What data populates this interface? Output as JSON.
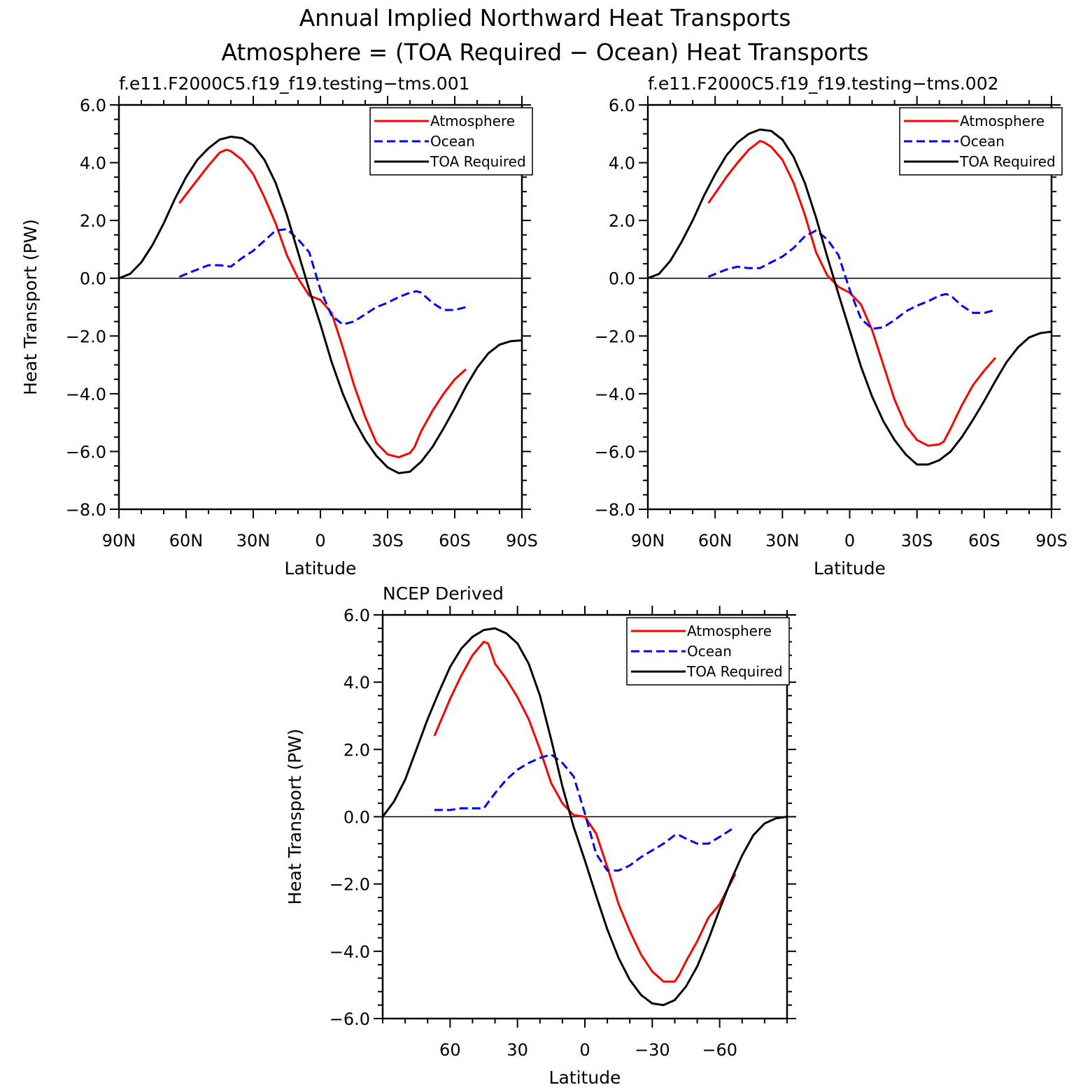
{
  "figure": {
    "title_lines": [
      "Annual Implied Northward Heat Transports",
      "Atmosphere = (TOA Required − Ocean) Heat Transports"
    ]
  },
  "colors": {
    "atmosphere": "#ff0000",
    "ocean": "#0000ff",
    "toa": "#000000"
  },
  "chart_data": [
    {
      "type": "line",
      "title": "f.e11.F2000C5.f19_f19.testing−tms.001",
      "xlabel": "Latitude",
      "ylabel": "Heat Transport (PW)",
      "xlim": [
        90,
        -90
      ],
      "ylim": [
        -8,
        6
      ],
      "x_ticks": [
        90,
        60,
        30,
        0,
        -30,
        -60,
        -90
      ],
      "x_tick_labels": [
        "90N",
        "60N",
        "30N",
        "0",
        "30S",
        "60S",
        "90S"
      ],
      "y_ticks": [
        6,
        4,
        2,
        0,
        -2,
        -4,
        -6,
        -8
      ],
      "y_tick_labels": [
        "6.0",
        "4.0",
        "2.0",
        "0.0",
        "−2.0",
        "−4.0",
        "−6.0",
        "−8.0"
      ],
      "legend": {
        "position": "top-right",
        "entries": [
          "Atmosphere",
          "Ocean",
          "TOA Required"
        ]
      },
      "series": [
        {
          "name": "Atmosphere",
          "style": "solid",
          "color": "#ff0000",
          "x": [
            63,
            55,
            50,
            45,
            42,
            40,
            35,
            30,
            25,
            20,
            15,
            10,
            5,
            0,
            -5,
            -10,
            -15,
            -20,
            -25,
            -30,
            -35,
            -40,
            -42,
            -45,
            -50,
            -55,
            -60,
            -65
          ],
          "y": [
            2.6,
            3.4,
            3.9,
            4.35,
            4.45,
            4.4,
            4.1,
            3.6,
            2.8,
            1.9,
            0.8,
            0.0,
            -0.6,
            -0.75,
            -1.2,
            -2.4,
            -3.7,
            -4.8,
            -5.7,
            -6.1,
            -6.2,
            -6.05,
            -5.85,
            -5.3,
            -4.6,
            -4.0,
            -3.5,
            -3.15
          ]
        },
        {
          "name": "Ocean",
          "style": "dashed",
          "color": "#0000ff",
          "x": [
            63,
            55,
            50,
            45,
            40,
            35,
            30,
            25,
            20,
            15,
            10,
            5,
            0,
            -5,
            -10,
            -15,
            -20,
            -25,
            -30,
            -35,
            -40,
            -43,
            -45,
            -50,
            -55,
            -60,
            -65
          ],
          "y": [
            0.05,
            0.3,
            0.45,
            0.45,
            0.4,
            0.7,
            0.95,
            1.3,
            1.65,
            1.7,
            1.35,
            0.9,
            -0.4,
            -1.3,
            -1.6,
            -1.5,
            -1.25,
            -1.0,
            -0.85,
            -0.65,
            -0.5,
            -0.45,
            -0.5,
            -0.85,
            -1.1,
            -1.1,
            -1.0
          ]
        },
        {
          "name": "TOA Required",
          "style": "solid",
          "color": "#000000",
          "x": [
            90,
            85,
            80,
            75,
            70,
            65,
            60,
            55,
            50,
            45,
            40,
            35,
            30,
            25,
            20,
            15,
            10,
            5,
            0,
            -5,
            -10,
            -15,
            -20,
            -25,
            -30,
            -35,
            -40,
            -45,
            -50,
            -55,
            -60,
            -65,
            -70,
            -75,
            -80,
            -85,
            -90
          ],
          "y": [
            0.0,
            0.15,
            0.55,
            1.15,
            1.9,
            2.75,
            3.5,
            4.1,
            4.5,
            4.8,
            4.9,
            4.85,
            4.6,
            4.1,
            3.3,
            2.2,
            0.9,
            -0.4,
            -1.6,
            -2.9,
            -4.0,
            -4.9,
            -5.6,
            -6.15,
            -6.55,
            -6.75,
            -6.7,
            -6.35,
            -5.85,
            -5.2,
            -4.5,
            -3.75,
            -3.1,
            -2.6,
            -2.3,
            -2.18,
            -2.15
          ]
        }
      ]
    },
    {
      "type": "line",
      "title": "f.e11.F2000C5.f19_f19.testing−tms.002",
      "xlabel": "Latitude",
      "ylabel": "",
      "xlim": [
        90,
        -90
      ],
      "ylim": [
        -8,
        6
      ],
      "x_ticks": [
        90,
        60,
        30,
        0,
        -30,
        -60,
        -90
      ],
      "x_tick_labels": [
        "90N",
        "60N",
        "30N",
        "0",
        "30S",
        "60S",
        "90S"
      ],
      "y_ticks": [
        6,
        4,
        2,
        0,
        -2,
        -4,
        -6,
        -8
      ],
      "y_tick_labels": [
        "6.0",
        "4.0",
        "2.0",
        "0.0",
        "−2.0",
        "−4.0",
        "−6.0",
        "−8.0"
      ],
      "legend": {
        "position": "top-right",
        "entries": [
          "Atmosphere",
          "Ocean",
          "TOA Required"
        ]
      },
      "series": [
        {
          "name": "Atmosphere",
          "style": "solid",
          "color": "#ff0000",
          "x": [
            63,
            55,
            50,
            45,
            40,
            38,
            35,
            30,
            25,
            20,
            15,
            10,
            5,
            0,
            -5,
            -10,
            -15,
            -20,
            -25,
            -30,
            -35,
            -40,
            -42,
            -45,
            -50,
            -55,
            -60,
            -65
          ],
          "y": [
            2.6,
            3.5,
            4.0,
            4.45,
            4.75,
            4.7,
            4.55,
            4.1,
            3.3,
            2.2,
            0.9,
            0.1,
            -0.3,
            -0.5,
            -0.9,
            -1.8,
            -3.0,
            -4.2,
            -5.1,
            -5.6,
            -5.8,
            -5.75,
            -5.65,
            -5.2,
            -4.4,
            -3.7,
            -3.2,
            -2.75
          ]
        },
        {
          "name": "Ocean",
          "style": "dashed",
          "color": "#0000ff",
          "x": [
            63,
            55,
            50,
            45,
            40,
            35,
            30,
            25,
            20,
            15,
            10,
            5,
            0,
            -5,
            -10,
            -15,
            -20,
            -25,
            -30,
            -35,
            -40,
            -43,
            -45,
            -50,
            -55,
            -60,
            -65
          ],
          "y": [
            0.05,
            0.3,
            0.4,
            0.35,
            0.35,
            0.55,
            0.75,
            1.05,
            1.45,
            1.65,
            1.35,
            0.8,
            -0.4,
            -1.4,
            -1.75,
            -1.7,
            -1.45,
            -1.15,
            -0.95,
            -0.8,
            -0.6,
            -0.55,
            -0.6,
            -0.95,
            -1.2,
            -1.2,
            -1.1
          ]
        },
        {
          "name": "TOA Required",
          "style": "solid",
          "color": "#000000",
          "x": [
            90,
            85,
            80,
            75,
            70,
            65,
            60,
            55,
            50,
            45,
            40,
            35,
            30,
            25,
            20,
            15,
            10,
            5,
            0,
            -5,
            -10,
            -15,
            -20,
            -25,
            -30,
            -35,
            -40,
            -45,
            -50,
            -55,
            -60,
            -65,
            -70,
            -75,
            -80,
            -85,
            -90
          ],
          "y": [
            0.0,
            0.15,
            0.6,
            1.25,
            2.0,
            2.85,
            3.6,
            4.25,
            4.7,
            5.0,
            5.15,
            5.1,
            4.8,
            4.2,
            3.3,
            2.1,
            0.75,
            -0.55,
            -1.8,
            -3.05,
            -4.1,
            -4.95,
            -5.6,
            -6.1,
            -6.45,
            -6.45,
            -6.3,
            -6.0,
            -5.5,
            -4.9,
            -4.25,
            -3.55,
            -2.9,
            -2.4,
            -2.05,
            -1.9,
            -1.85
          ]
        }
      ]
    },
    {
      "type": "line",
      "title": "NCEP Derived",
      "xlabel": "Latitude",
      "ylabel": "Heat Transport (PW)",
      "xlim": [
        90,
        -90
      ],
      "ylim": [
        -6,
        6
      ],
      "x_ticks": [
        60,
        30,
        0,
        -30,
        -60
      ],
      "x_tick_labels": [
        "60",
        "30",
        "0",
        "−30",
        "−60"
      ],
      "y_ticks": [
        6,
        4,
        2,
        0,
        -2,
        -4,
        -6
      ],
      "y_tick_labels": [
        "6.0",
        "4.0",
        "2.0",
        "0.0",
        "−2.0",
        "−4.0",
        "−6.0"
      ],
      "legend": {
        "position": "top-right",
        "entries": [
          "Atmosphere",
          "Ocean",
          "TOA Required"
        ]
      },
      "series": [
        {
          "name": "Atmosphere",
          "style": "solid",
          "color": "#ff0000",
          "x": [
            67,
            60,
            55,
            50,
            45,
            43,
            40,
            35,
            30,
            25,
            20,
            15,
            10,
            5,
            0,
            -5,
            -10,
            -15,
            -20,
            -25,
            -30,
            -35,
            -40,
            -42,
            -45,
            -50,
            -55,
            -60,
            -67
          ],
          "y": [
            2.4,
            3.5,
            4.2,
            4.8,
            5.2,
            5.15,
            4.55,
            4.1,
            3.55,
            2.9,
            2.0,
            1.0,
            0.4,
            0.05,
            0.0,
            -0.5,
            -1.5,
            -2.6,
            -3.4,
            -4.1,
            -4.6,
            -4.9,
            -4.9,
            -4.7,
            -4.3,
            -3.7,
            -3.0,
            -2.6,
            -1.7
          ]
        },
        {
          "name": "Ocean",
          "style": "dashed",
          "color": "#0000ff",
          "x": [
            67,
            60,
            55,
            50,
            45,
            40,
            35,
            30,
            25,
            20,
            15,
            10,
            5,
            0,
            -5,
            -10,
            -15,
            -20,
            -25,
            -30,
            -35,
            -40,
            -42,
            -45,
            -50,
            -55,
            -60,
            -67
          ],
          "y": [
            0.2,
            0.2,
            0.25,
            0.25,
            0.25,
            0.7,
            1.1,
            1.4,
            1.6,
            1.75,
            1.85,
            1.6,
            1.2,
            0.1,
            -1.1,
            -1.6,
            -1.6,
            -1.45,
            -1.2,
            -1.0,
            -0.8,
            -0.55,
            -0.55,
            -0.65,
            -0.8,
            -0.8,
            -0.6,
            -0.3
          ]
        },
        {
          "name": "TOA Required",
          "style": "solid",
          "color": "#000000",
          "x": [
            90,
            85,
            80,
            75,
            70,
            65,
            60,
            55,
            50,
            45,
            40,
            35,
            30,
            25,
            20,
            15,
            10,
            5,
            0,
            -5,
            -10,
            -15,
            -20,
            -25,
            -30,
            -35,
            -40,
            -45,
            -50,
            -55,
            -60,
            -65,
            -70,
            -75,
            -80,
            -85,
            -90
          ],
          "y": [
            0.0,
            0.45,
            1.1,
            2.0,
            2.9,
            3.7,
            4.45,
            5.0,
            5.35,
            5.55,
            5.6,
            5.45,
            5.15,
            4.55,
            3.6,
            2.3,
            0.9,
            -0.3,
            -1.3,
            -2.35,
            -3.35,
            -4.2,
            -4.85,
            -5.3,
            -5.55,
            -5.6,
            -5.45,
            -5.05,
            -4.45,
            -3.65,
            -2.75,
            -1.9,
            -1.15,
            -0.55,
            -0.2,
            -0.05,
            0.0
          ]
        }
      ]
    }
  ]
}
